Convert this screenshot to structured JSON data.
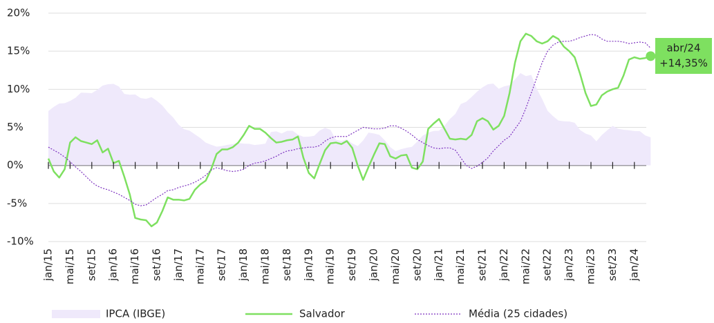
{
  "chart_data": {
    "type": "line",
    "categories": [
      "jan/15",
      null,
      null,
      null,
      "mai/15",
      null,
      null,
      null,
      "set/15",
      null,
      null,
      null,
      "jan/16",
      null,
      null,
      null,
      "mai/16",
      null,
      null,
      null,
      "set/16",
      null,
      null,
      null,
      "jan/17",
      null,
      null,
      null,
      "mai/17",
      null,
      null,
      null,
      "set/17",
      null,
      null,
      null,
      "jan/18",
      null,
      null,
      null,
      "mai/18",
      null,
      null,
      null,
      "set/18",
      null,
      null,
      null,
      "jan/19",
      null,
      null,
      null,
      "mai/19",
      null,
      null,
      null,
      "set/19",
      null,
      null,
      null,
      "jan/20",
      null,
      null,
      null,
      "mai/20",
      null,
      null,
      null,
      "set/20",
      null,
      null,
      null,
      "jan/21",
      null,
      null,
      null,
      "mai/21",
      null,
      null,
      null,
      "set/21",
      null,
      null,
      null,
      "jan/22",
      null,
      null,
      null,
      "mai/22",
      null,
      null,
      null,
      "set/22",
      null,
      null,
      null,
      "jan/23",
      null,
      null,
      null,
      "mai/23",
      null,
      null,
      null,
      "set/23",
      null,
      null,
      null,
      "jan/24",
      null,
      null,
      null
    ],
    "series": [
      {
        "name": "IPCA (IBGE)",
        "type": "area",
        "color": "#efe9fb",
        "values": [
          7.14,
          7.7,
          8.13,
          8.17,
          8.47,
          8.89,
          9.56,
          9.53,
          9.49,
          9.93,
          10.48,
          10.67,
          10.71,
          10.36,
          9.39,
          9.28,
          9.32,
          8.84,
          8.74,
          8.97,
          8.48,
          7.87,
          6.99,
          6.29,
          5.35,
          4.76,
          4.57,
          4.08,
          3.6,
          3.0,
          2.71,
          2.46,
          2.54,
          2.7,
          2.8,
          2.95,
          2.86,
          2.84,
          2.68,
          2.76,
          2.86,
          4.39,
          4.48,
          4.19,
          4.53,
          4.56,
          4.05,
          3.75,
          3.78,
          3.89,
          4.58,
          4.94,
          4.66,
          3.37,
          3.22,
          3.43,
          2.89,
          2.54,
          3.27,
          4.31,
          4.19,
          4.01,
          3.3,
          2.4,
          1.88,
          2.13,
          2.31,
          2.44,
          3.14,
          3.92,
          4.31,
          4.52,
          4.56,
          5.2,
          6.1,
          6.76,
          8.06,
          8.35,
          8.99,
          9.68,
          10.25,
          10.67,
          10.74,
          10.06,
          10.38,
          10.54,
          11.3,
          12.13,
          11.73,
          11.89,
          10.07,
          8.73,
          7.17,
          6.47,
          5.9,
          5.79,
          5.77,
          5.6,
          4.65,
          4.18,
          3.94,
          3.16,
          3.99,
          4.61,
          5.19,
          4.82,
          4.68,
          4.62,
          4.51,
          4.5,
          3.93,
          3.69
        ]
      },
      {
        "name": "Salvador",
        "type": "line",
        "color": "#7ee060",
        "values": [
          0.9,
          -0.8,
          -1.6,
          -0.5,
          3.0,
          3.7,
          3.2,
          3.0,
          2.8,
          3.3,
          1.7,
          2.2,
          0.3,
          0.6,
          -1.5,
          -3.8,
          -6.9,
          -7.1,
          -7.2,
          -8.0,
          -7.5,
          -6.0,
          -4.2,
          -4.5,
          -4.5,
          -4.6,
          -4.4,
          -3.2,
          -2.5,
          -2.0,
          -0.5,
          1.5,
          2.1,
          2.1,
          2.4,
          3.0,
          4.0,
          5.2,
          4.8,
          4.8,
          4.3,
          3.6,
          3.0,
          3.1,
          3.3,
          3.4,
          3.8,
          1.0,
          -1.0,
          -1.7,
          0.2,
          2.0,
          2.9,
          3.0,
          2.8,
          3.2,
          2.3,
          0.0,
          -1.9,
          -0.2,
          1.4,
          2.9,
          2.8,
          1.2,
          0.9,
          1.3,
          1.4,
          -0.3,
          -0.5,
          0.5,
          4.8,
          5.5,
          6.1,
          4.8,
          3.5,
          3.4,
          3.5,
          3.4,
          4.0,
          5.8,
          6.2,
          5.8,
          4.7,
          5.2,
          6.5,
          9.5,
          13.5,
          16.3,
          17.3,
          17.0,
          16.3,
          16.0,
          16.3,
          17.0,
          16.6,
          15.6,
          15.0,
          14.2,
          12.0,
          9.5,
          7.8,
          8.0,
          9.2,
          9.7,
          10.0,
          10.2,
          11.8,
          13.9,
          14.2,
          14.0,
          14.1,
          14.35
        ]
      },
      {
        "name": "Média (25 cidades)",
        "type": "dotted",
        "color": "#7b2fbf",
        "values": [
          2.4,
          2.0,
          1.6,
          1.1,
          0.5,
          -0.2,
          -0.8,
          -1.5,
          -2.2,
          -2.7,
          -3.0,
          -3.2,
          -3.5,
          -3.8,
          -4.2,
          -4.6,
          -5.1,
          -5.3,
          -5.2,
          -4.7,
          -4.2,
          -3.8,
          -3.3,
          -3.2,
          -2.9,
          -2.7,
          -2.5,
          -2.2,
          -1.8,
          -1.3,
          -0.6,
          -0.3,
          -0.5,
          -0.7,
          -0.8,
          -0.7,
          -0.5,
          0.0,
          0.3,
          0.4,
          0.6,
          0.9,
          1.2,
          1.6,
          1.9,
          2.0,
          2.2,
          2.3,
          2.4,
          2.4,
          2.6,
          3.2,
          3.6,
          3.8,
          3.8,
          3.8,
          4.2,
          4.6,
          5.0,
          4.9,
          4.8,
          4.8,
          4.9,
          5.2,
          5.2,
          4.9,
          4.5,
          4.0,
          3.4,
          3.0,
          2.6,
          2.3,
          2.2,
          2.3,
          2.3,
          2.0,
          1.0,
          0.0,
          -0.4,
          -0.1,
          0.4,
          1.0,
          1.9,
          2.6,
          3.3,
          3.8,
          4.8,
          5.8,
          7.5,
          9.5,
          11.5,
          13.5,
          15.0,
          15.8,
          16.2,
          16.3,
          16.3,
          16.5,
          16.8,
          17.0,
          17.2,
          17.1,
          16.6,
          16.3,
          16.3,
          16.3,
          16.2,
          16.0,
          16.1,
          16.2,
          16.1,
          15.4
        ]
      }
    ],
    "ylim": [
      -10,
      20
    ],
    "yticks": [
      {
        "value": -10,
        "label": "-10%"
      },
      {
        "value": -5,
        "label": "-5%"
      },
      {
        "value": 0,
        "label": "0%"
      },
      {
        "value": 5,
        "label": "5%"
      },
      {
        "value": 10,
        "label": "10%"
      },
      {
        "value": 15,
        "label": "15%"
      },
      {
        "value": 20,
        "label": "20%"
      }
    ],
    "grid": true,
    "annotation": [
      "abr/24",
      "+14,35%"
    ],
    "annotation_color": "#7ee060"
  }
}
